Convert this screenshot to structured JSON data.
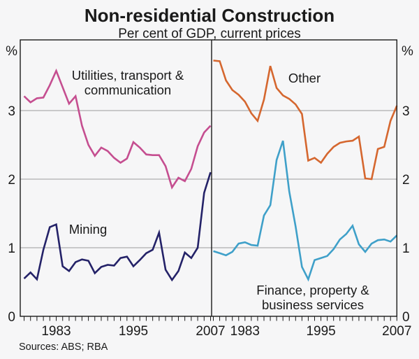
{
  "title": "Non-residential Construction",
  "subtitle": "Per cent of GDP, current prices",
  "footer": {
    "sources": "Sources: ABS; RBA"
  },
  "axes": {
    "unit_label": "%",
    "y_tick_labels": [
      "3",
      "2",
      "1",
      "0"
    ],
    "x_tick_years": [
      "1983",
      "1995",
      "2007"
    ]
  },
  "colors": {
    "background": "#f6f6f7",
    "frame": "#1a1a1a",
    "gridline": "#9c9c9c",
    "utilities": "#c54e90",
    "mining": "#242268",
    "other": "#d5672f",
    "finance": "#3fa0c9"
  },
  "chart_data": {
    "type": "line",
    "title": "Non-residential Construction",
    "subtitle": "Per cent of GDP, current prices",
    "ylabel": "%",
    "ylim": [
      0,
      4.03
    ],
    "gridlines": [
      1,
      2,
      3
    ],
    "x_labeled_years": [
      1983,
      1995,
      2007
    ],
    "years": [
      1978,
      1979,
      1980,
      1981,
      1982,
      1983,
      1984,
      1985,
      1986,
      1987,
      1988,
      1989,
      1990,
      1991,
      1992,
      1993,
      1994,
      1995,
      1996,
      1997,
      1998,
      1999,
      2000,
      2001,
      2002,
      2003,
      2004,
      2005,
      2006,
      2007
    ],
    "panels": [
      {
        "name": "left",
        "series": [
          {
            "id": "utilities",
            "name": "Utilities, transport & communication",
            "label_lines": [
              "Utilities, transport &",
              "communication"
            ],
            "color": "#c54e90",
            "values": [
              3.21,
              3.12,
              3.18,
              3.19,
              3.37,
              3.58,
              3.34,
              3.1,
              3.21,
              2.78,
              2.5,
              2.34,
              2.46,
              2.41,
              2.31,
              2.24,
              2.3,
              2.54,
              2.46,
              2.36,
              2.35,
              2.35,
              2.19,
              1.88,
              2.02,
              1.97,
              2.15,
              2.48,
              2.68,
              2.78
            ]
          },
          {
            "id": "mining",
            "name": "Mining",
            "label_lines": [
              "Mining"
            ],
            "color": "#242268",
            "values": [
              0.55,
              0.64,
              0.54,
              0.97,
              1.3,
              1.34,
              0.73,
              0.66,
              0.79,
              0.83,
              0.81,
              0.63,
              0.72,
              0.75,
              0.74,
              0.85,
              0.87,
              0.73,
              0.82,
              0.92,
              0.97,
              1.22,
              0.68,
              0.53,
              0.66,
              0.93,
              0.85,
              1.0,
              1.8,
              2.1
            ]
          }
        ]
      },
      {
        "name": "right",
        "series": [
          {
            "id": "other",
            "name": "Other",
            "label_lines": [
              "Other"
            ],
            "color": "#d5672f",
            "values": [
              3.73,
              3.72,
              3.44,
              3.3,
              3.23,
              3.13,
              2.96,
              2.85,
              3.16,
              3.65,
              3.33,
              3.22,
              3.17,
              3.09,
              2.95,
              2.27,
              2.31,
              2.24,
              2.37,
              2.47,
              2.53,
              2.55,
              2.56,
              2.62,
              2.01,
              2.0,
              2.44,
              2.47,
              2.85,
              3.07
            ]
          },
          {
            "id": "finance",
            "name": "Finance, property & business services",
            "label_lines": [
              "Finance, property &",
              "business services"
            ],
            "color": "#3fa0c9",
            "values": [
              0.95,
              0.92,
              0.89,
              0.94,
              1.06,
              1.08,
              1.04,
              1.03,
              1.47,
              1.62,
              2.28,
              2.56,
              1.82,
              1.31,
              0.72,
              0.54,
              0.82,
              0.85,
              0.88,
              0.98,
              1.12,
              1.2,
              1.32,
              1.05,
              0.94,
              1.06,
              1.11,
              1.12,
              1.09,
              1.18
            ]
          }
        ]
      }
    ]
  }
}
